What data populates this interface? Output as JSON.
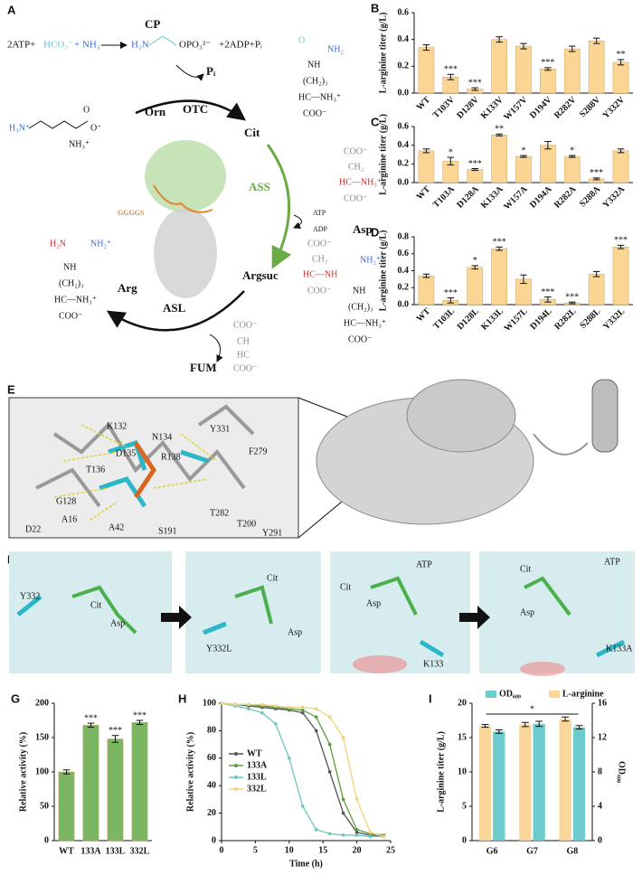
{
  "pathway": {
    "label": "A",
    "reaction_left": "2ATP+",
    "hco3": "HCO₃⁻",
    "nh3": "+ NH₃",
    "cp": "CP",
    "cp_amine": "H₂N",
    "cp_phosphate": "OPO₃²⁻",
    "products": "+2ADP+Pᵢ",
    "pi": "Pᵢ",
    "orn": "Orn",
    "otc": "OTC",
    "cit": "Cit",
    "asp": "Asp",
    "ass": "ASS",
    "atp": "ATP",
    "adp": "ADP",
    "linker": "GGGGS",
    "argsuc": "Argsuc",
    "arg": "Arg",
    "asl": "ASL",
    "fum": "FUM",
    "orn_structure": [
      "H₃N⁺",
      "NH₃⁺",
      "O⁻",
      "O"
    ],
    "cit_structure": [
      "O",
      "NH₂",
      "NH",
      "(CH₂)₃",
      "HC—NH₃⁺",
      "COO⁻"
    ],
    "asp_structure": [
      "COO⁻",
      "CH₂",
      "HC—NH₃⁺",
      "COO⁻"
    ],
    "argsuc_structure": [
      "COO⁻",
      "CH₂",
      "HC—NH",
      "COO⁻",
      "NH₂⁺",
      "NH",
      "(CH₂)₃",
      "HC—NH₃⁺",
      "COO⁻"
    ],
    "arg_structure": [
      "H₂N",
      "NH₂⁺",
      "NH",
      "(CH₂)₃",
      "HC—NH₃⁺",
      "COO⁻"
    ],
    "fum_structure": [
      "COO⁻",
      "CH",
      "HC",
      "COO⁻"
    ]
  },
  "structure_e": {
    "label": "E",
    "residues": [
      "K132",
      "Y331",
      "N134",
      "R138",
      "D135",
      "T136",
      "F279",
      "G128",
      "A16",
      "D22",
      "A42",
      "S191",
      "T282",
      "T200",
      "Y291"
    ]
  },
  "structure_f": {
    "label": "F",
    "panels": [
      [
        "Y332",
        "Cit",
        "Asp"
      ],
      [
        "Y332L",
        "Cit",
        "Asp"
      ],
      [
        "Cit",
        "Asp",
        "ATP",
        "K133"
      ],
      [
        "Cit",
        "ATP",
        "Asp",
        "K133A"
      ]
    ]
  },
  "chart_data": [
    {
      "type": "bar",
      "label": "B",
      "y_label": "L-arginine titer (g/L)",
      "color": "#fbd594",
      "categories": [
        "WT",
        "T103V",
        "D128V",
        "K133V",
        "W157V",
        "D194V",
        "R282V",
        "S288V",
        "Y332V"
      ],
      "values": [
        0.34,
        0.12,
        0.03,
        0.4,
        0.35,
        0.18,
        0.33,
        0.39,
        0.23
      ],
      "errors": [
        0.02,
        0.02,
        0.01,
        0.02,
        0.02,
        0.01,
        0.02,
        0.02,
        0.02
      ],
      "annotations": [
        null,
        "***",
        "***",
        null,
        null,
        "***",
        null,
        null,
        "**"
      ],
      "ylim": [
        0,
        0.6
      ],
      "yticks": [
        {
          "value": 0,
          "label": "0.0"
        },
        0.2,
        0.4,
        0.6
      ]
    },
    {
      "type": "bar",
      "label": "C",
      "y_label": "L-arginine titer (g/L)",
      "color": "#fbd594",
      "categories": [
        "WT",
        "T103A",
        "D128A",
        "K133A",
        "W157A",
        "D194A",
        "R282A",
        "S288A",
        "Y332A"
      ],
      "values": [
        0.34,
        0.23,
        0.14,
        0.51,
        0.28,
        0.4,
        0.28,
        0.04,
        0.34
      ],
      "errors": [
        0.02,
        0.04,
        0.01,
        0.01,
        0.01,
        0.04,
        0.01,
        0.01,
        0.02
      ],
      "annotations": [
        null,
        "*",
        "***",
        "**",
        "*",
        null,
        "*",
        "***",
        null
      ],
      "ylim": [
        0,
        0.6
      ],
      "yticks": [
        {
          "value": 0,
          "label": "0.0"
        },
        0.2,
        0.4,
        0.6
      ]
    },
    {
      "type": "bar",
      "label": "D",
      "y_label": "L-arginine titer (g/L)",
      "color": "#fbd594",
      "categories": [
        "WT",
        "T103L",
        "D128L",
        "K133L",
        "W157L",
        "D194L",
        "R282L",
        "S288L",
        "Y332L"
      ],
      "values": [
        0.34,
        0.05,
        0.44,
        0.66,
        0.3,
        0.06,
        0.02,
        0.36,
        0.68
      ],
      "errors": [
        0.02,
        0.03,
        0.02,
        0.02,
        0.05,
        0.03,
        0.01,
        0.03,
        0.02
      ],
      "annotations": [
        null,
        "***",
        "*",
        "***",
        null,
        "***",
        "***",
        null,
        "***"
      ],
      "ylim": [
        0,
        0.8
      ],
      "yticks": [
        {
          "value": 0,
          "label": "0.0"
        },
        0.2,
        0.4,
        0.6,
        0.8
      ]
    },
    {
      "type": "bar",
      "label": "G",
      "y_label": "Relative activity (%)",
      "color": "#7bb662",
      "categories": [
        "WT",
        "133A",
        "133L",
        "332L"
      ],
      "values": [
        100,
        168,
        148,
        172
      ],
      "errors": [
        3,
        3,
        5,
        3
      ],
      "annotations": [
        null,
        "***",
        "***",
        "***"
      ],
      "ylim": [
        0,
        200
      ],
      "yticks": [
        0,
        50,
        100,
        150,
        200
      ]
    },
    {
      "type": "line",
      "label": "H",
      "x_label": "Time (h)",
      "y_label": "Relative activity (%)",
      "legend": "center left",
      "x": [
        0,
        2,
        4,
        6,
        8,
        10,
        12,
        14,
        16,
        18,
        20,
        22,
        24
      ],
      "series": [
        {
          "name": "WT",
          "color": "#555555",
          "values": [
            100,
            99,
            98,
            97,
            96,
            95,
            93,
            80,
            50,
            20,
            6,
            4,
            3
          ]
        },
        {
          "name": "133A",
          "color": "#5a9e3a",
          "values": [
            100,
            99,
            99,
            98,
            97,
            96,
            95,
            90,
            70,
            30,
            8,
            5,
            4
          ]
        },
        {
          "name": "133L",
          "color": "#6cc5c0",
          "values": [
            100,
            98,
            96,
            93,
            85,
            60,
            25,
            8,
            5,
            4,
            4,
            3,
            3
          ]
        },
        {
          "name": "332L",
          "color": "#f2d27a",
          "values": [
            100,
            99,
            99,
            99,
            98,
            97,
            97,
            96,
            90,
            75,
            30,
            6,
            3
          ]
        }
      ],
      "xlim": [
        0,
        25
      ],
      "xticks": [
        0,
        5,
        10,
        15,
        20,
        25
      ],
      "ylim": [
        0,
        100
      ],
      "yticks": [
        0,
        20,
        40,
        60,
        80,
        100
      ]
    },
    {
      "type": "groupbar",
      "label": "I",
      "y_label": "L-arginine titer (g/L)",
      "y2_label": "OD₆₀₀",
      "categories": [
        "G6",
        "G7",
        "G8"
      ],
      "series": [
        {
          "name": "OD₆₀₀",
          "color": "#6ccbcc",
          "axis": "y2",
          "values": [
            12.7,
            13.6,
            13.2
          ],
          "errors": [
            0.2,
            0.3,
            0.2
          ]
        },
        {
          "name": "L-arginine",
          "color": "#fad69a",
          "values": [
            16.7,
            16.9,
            17.7
          ],
          "errors": [
            0.2,
            0.3,
            0.3
          ]
        }
      ],
      "significance": "*",
      "ylim": [
        0,
        20
      ],
      "yticks": [
        0,
        5,
        10,
        15,
        20
      ],
      "y2lim": [
        0,
        16
      ],
      "y2ticks": [
        0,
        4,
        8,
        12,
        16
      ]
    }
  ]
}
